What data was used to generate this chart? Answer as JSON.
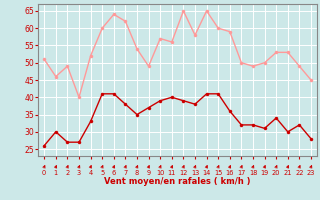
{
  "vent_moyen": [
    26,
    30,
    27,
    27,
    33,
    41,
    41,
    38,
    35,
    37,
    39,
    40,
    39,
    38,
    41,
    41,
    36,
    32,
    32,
    31,
    34,
    30,
    32,
    28
  ],
  "rafales": [
    51,
    46,
    49,
    40,
    52,
    60,
    64,
    62,
    54,
    49,
    57,
    56,
    65,
    58,
    65,
    60,
    59,
    50,
    49,
    50,
    53,
    53,
    49,
    45
  ],
  "xlabel": "Vent moyen/en rafales ( km/h )",
  "ylabel_ticks": [
    25,
    30,
    35,
    40,
    45,
    50,
    55,
    60,
    65
  ],
  "xlim": [
    -0.5,
    23.5
  ],
  "ylim": [
    23,
    67
  ],
  "bg_color": "#cce8e8",
  "grid_color": "#ffffff",
  "line_color_moyen": "#cc0000",
  "line_color_rafales": "#ff9999",
  "marker_size": 2.5,
  "line_width": 1.0,
  "arrow_color": "#cc0000",
  "label_color": "#cc0000"
}
